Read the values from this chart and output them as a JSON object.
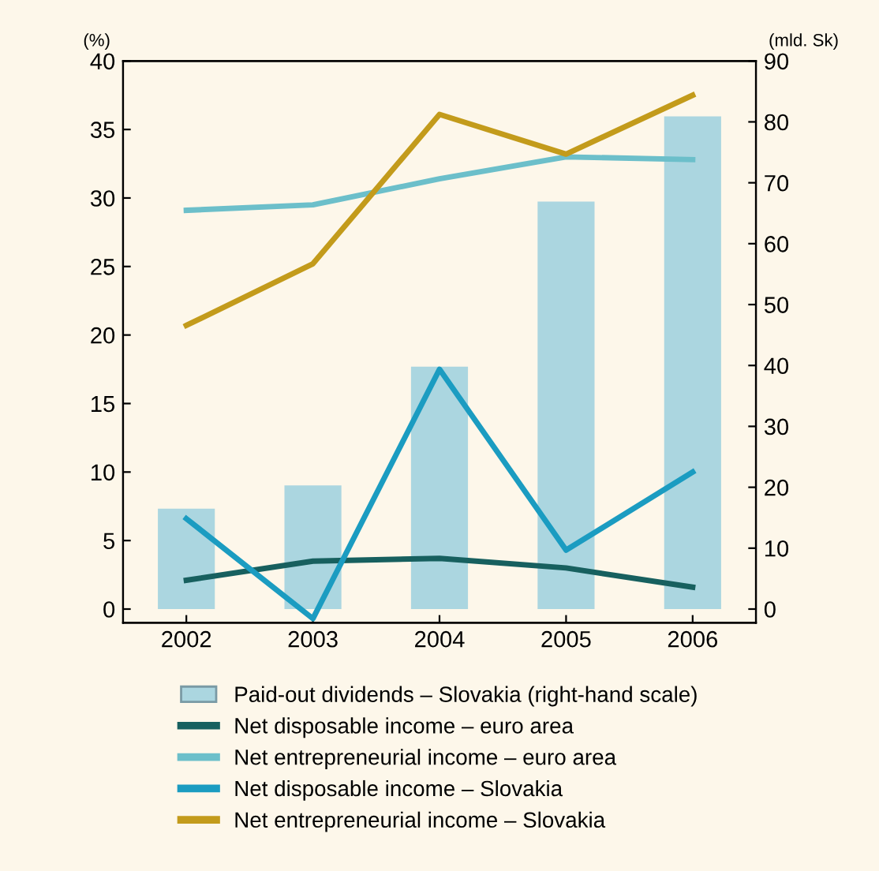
{
  "chart_data": {
    "type": "line",
    "ylabel": "(%)",
    "y2label": "(mld. Sk)",
    "categories": [
      "2002",
      "2003",
      "2004",
      "2005",
      "2006"
    ],
    "series": [
      {
        "name": "Paid-out dividends – Slovakia (right-hand scale)",
        "type": "bar",
        "axis": "y2",
        "color": "#abd6e0",
        "values": [
          16.5,
          20.3,
          39.8,
          66.9,
          80.9
        ]
      },
      {
        "name": "Net disposable income – euro area",
        "color": "#17605f",
        "values": [
          2.1,
          3.5,
          3.7,
          3.0,
          1.6
        ]
      },
      {
        "name": "Net entrepreneurial income – euro area",
        "color": "#6cbfca",
        "values": [
          29.1,
          29.5,
          31.4,
          33.0,
          32.8
        ]
      },
      {
        "name": "Net disposable income – Slovakia",
        "color": "#1b9cc1",
        "values": [
          6.6,
          -0.7,
          17.5,
          4.3,
          10.0
        ]
      },
      {
        "name": "Net entrepreneurial income – Slovakia",
        "color": "#c39b1b",
        "values": [
          20.7,
          25.2,
          36.1,
          33.2,
          37.5
        ]
      }
    ],
    "ylim": [
      -1,
      40
    ],
    "yticks": [
      0,
      5,
      10,
      15,
      20,
      25,
      30,
      35,
      40
    ],
    "y2lim": [
      -2.25,
      90
    ],
    "y2ticks": [
      0,
      10,
      20,
      30,
      40,
      50,
      60,
      70,
      80,
      90
    ],
    "grid": false,
    "legend": "bottom",
    "marker": "none",
    "line_style": "solid"
  }
}
